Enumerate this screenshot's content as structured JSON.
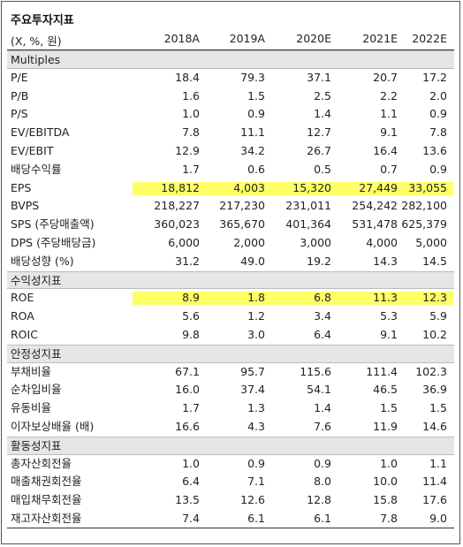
{
  "title": "주요투자지표",
  "unit_label": "(X, %, 원)",
  "columns": [
    "2018A",
    "2019A",
    "2020E",
    "2021E",
    "2022E"
  ],
  "highlight_color": "#ffff66",
  "rows": [
    {
      "type": "section",
      "label": "Multiples"
    },
    {
      "type": "data",
      "label": "P/E",
      "values": [
        "18.4",
        "79.3",
        "37.1",
        "20.7",
        "17.2"
      ]
    },
    {
      "type": "data",
      "label": "P/B",
      "values": [
        "1.6",
        "1.5",
        "2.5",
        "2.2",
        "2.0"
      ]
    },
    {
      "type": "data",
      "label": "P/S",
      "values": [
        "1.0",
        "0.9",
        "1.4",
        "1.1",
        "0.9"
      ]
    },
    {
      "type": "data",
      "label": "EV/EBITDA",
      "values": [
        "7.8",
        "11.1",
        "12.7",
        "9.1",
        "7.8"
      ]
    },
    {
      "type": "data",
      "label": "EV/EBIT",
      "values": [
        "12.9",
        "34.2",
        "26.7",
        "16.4",
        "13.6"
      ]
    },
    {
      "type": "data",
      "label": "배당수익률",
      "values": [
        "1.7",
        "0.6",
        "0.5",
        "0.7",
        "0.9"
      ]
    },
    {
      "type": "data",
      "label": "EPS",
      "values": [
        "18,812",
        "4,003",
        "15,320",
        "27,449",
        "33,055"
      ],
      "highlight": true
    },
    {
      "type": "data",
      "label": "BVPS",
      "values": [
        "218,227",
        "217,230",
        "231,011",
        "254,242",
        "282,100"
      ]
    },
    {
      "type": "data",
      "label": "SPS (주당매출액)",
      "values": [
        "360,023",
        "365,670",
        "401,364",
        "531,478",
        "625,379"
      ]
    },
    {
      "type": "data",
      "label": "DPS (주당배당금)",
      "values": [
        "6,000",
        "2,000",
        "3,000",
        "4,000",
        "5,000"
      ]
    },
    {
      "type": "data",
      "label": "배당성향 (%)",
      "values": [
        "31.2",
        "49.0",
        "19.2",
        "14.3",
        "14.5"
      ]
    },
    {
      "type": "section",
      "label": "수익성지표"
    },
    {
      "type": "data",
      "label": "ROE",
      "values": [
        "8.9",
        "1.8",
        "6.8",
        "11.3",
        "12.3"
      ],
      "highlight": true
    },
    {
      "type": "data",
      "label": "ROA",
      "values": [
        "5.6",
        "1.2",
        "3.4",
        "5.3",
        "5.9"
      ]
    },
    {
      "type": "data",
      "label": "ROIC",
      "values": [
        "9.8",
        "3.0",
        "6.4",
        "9.1",
        "10.2"
      ]
    },
    {
      "type": "section",
      "label": "안정성지표"
    },
    {
      "type": "data",
      "label": "부채비율",
      "values": [
        "67.1",
        "95.7",
        "115.6",
        "111.4",
        "102.3"
      ]
    },
    {
      "type": "data",
      "label": "순차입비율",
      "values": [
        "16.0",
        "37.4",
        "54.1",
        "46.5",
        "36.9"
      ]
    },
    {
      "type": "data",
      "label": "유동비율",
      "values": [
        "1.7",
        "1.3",
        "1.4",
        "1.5",
        "1.5"
      ]
    },
    {
      "type": "data",
      "label": "이자보상배율 (배)",
      "values": [
        "16.6",
        "4.3",
        "7.6",
        "11.9",
        "14.6"
      ]
    },
    {
      "type": "section",
      "label": "활동성지표"
    },
    {
      "type": "data",
      "label": "총자산회전율",
      "values": [
        "1.0",
        "0.9",
        "0.9",
        "1.0",
        "1.1"
      ]
    },
    {
      "type": "data",
      "label": "매출채권회전율",
      "values": [
        "6.4",
        "7.1",
        "8.0",
        "10.0",
        "11.4"
      ]
    },
    {
      "type": "data",
      "label": "매입채무회전율",
      "values": [
        "13.5",
        "12.6",
        "12.8",
        "15.8",
        "17.6"
      ]
    },
    {
      "type": "data",
      "label": "재고자산회전율",
      "values": [
        "7.4",
        "6.1",
        "6.1",
        "7.8",
        "9.0"
      ]
    }
  ]
}
